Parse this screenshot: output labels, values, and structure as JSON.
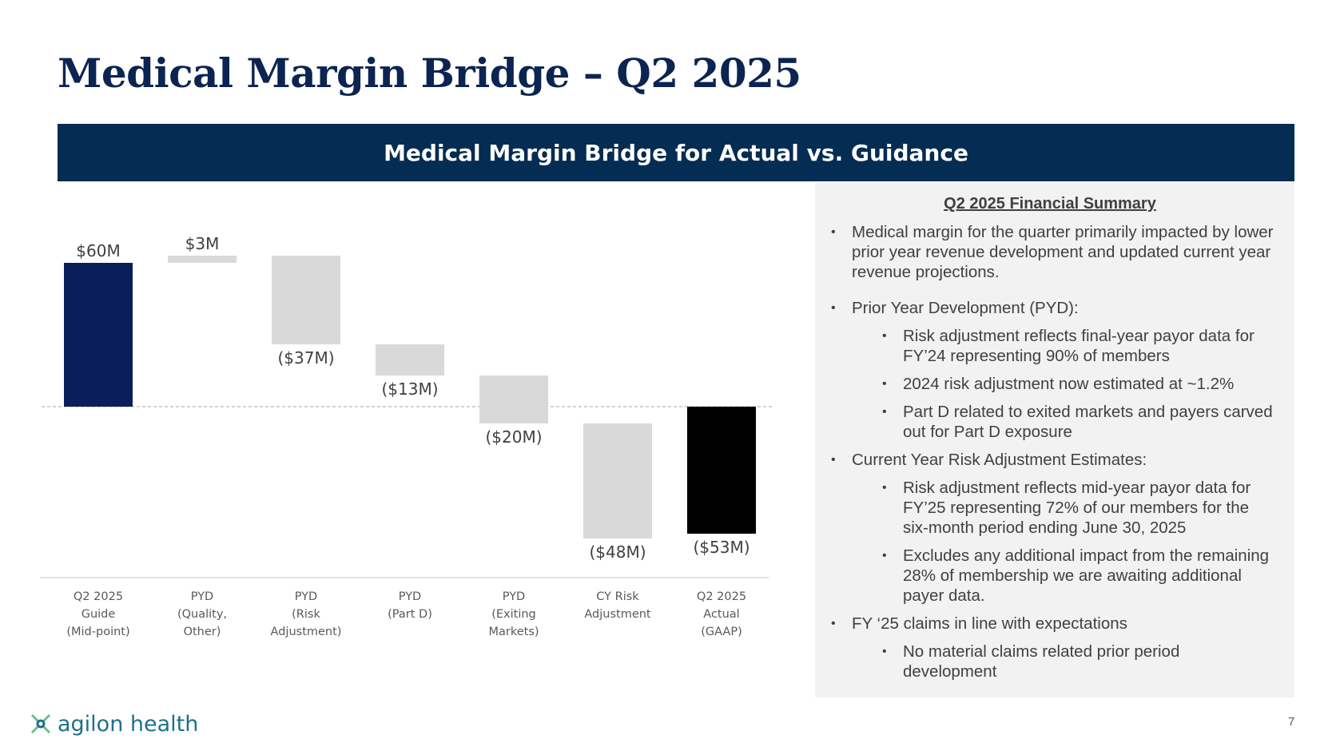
{
  "page": {
    "title": "Medical Margin Bridge – Q2 2025",
    "page_number": "7"
  },
  "banner": {
    "text": "Medical Margin Bridge for Actual vs. Guidance"
  },
  "chart_data": {
    "type": "waterfall",
    "title": "Medical Margin Bridge for Actual vs. Guidance",
    "categories": [
      [
        "Q2 2025",
        "Guide",
        "(Mid-point)"
      ],
      [
        "PYD",
        "(Quality,",
        "Other)"
      ],
      [
        "PYD",
        "(Risk",
        "Adjustment)"
      ],
      [
        "PYD",
        "(Part D)"
      ],
      [
        "PYD",
        "(Exiting",
        "Markets)"
      ],
      [
        "CY Risk",
        "Adjustment"
      ],
      [
        "Q2 2025",
        "Actual",
        "(GAAP)"
      ]
    ],
    "values": [
      60,
      3,
      -37,
      -13,
      -20,
      -48,
      -53
    ],
    "measures": [
      "total",
      "relative",
      "relative",
      "relative",
      "relative",
      "relative",
      "total"
    ],
    "data_labels": [
      "$60M",
      "$3M",
      "($37M)",
      "($13M)",
      "($20M)",
      "($48M)",
      "($53M)"
    ],
    "colors": [
      "#0a1e5c",
      "#d9d9d9",
      "#d9d9d9",
      "#d9d9d9",
      "#d9d9d9",
      "#d9d9d9",
      "#000000"
    ],
    "units": "$M",
    "baseline": 0,
    "ylim": [
      -60,
      66
    ]
  },
  "summary": {
    "heading": "Q2 2025 Financial Summary",
    "items": [
      {
        "level": 1,
        "text": "Medical margin for the quarter primarily impacted by lower prior year revenue development and updated current year revenue projections."
      },
      {
        "level": 1,
        "text": "Prior Year Development (PYD):"
      },
      {
        "level": 2,
        "text": "Risk adjustment reflects final-year payor data for FY’24 representing 90% of members"
      },
      {
        "level": 2,
        "text": "2024 risk adjustment now estimated at ~1.2%"
      },
      {
        "level": 2,
        "text": "Part D related to exited markets and payers carved out for Part D exposure"
      },
      {
        "level": 1,
        "text": "Current Year Risk Adjustment Estimates:"
      },
      {
        "level": 2,
        "text": "Risk adjustment reflects mid-year payor data for FY’25 representing 72% of our members for the six-month period ending June 30, 2025"
      },
      {
        "level": 2,
        "text": "Excludes any additional impact from the remaining 28% of membership we are awaiting additional payer data."
      },
      {
        "level": 1,
        "text": "FY ‘25 claims in line with expectations"
      },
      {
        "level": 2,
        "text": "No material claims related prior period development"
      }
    ]
  },
  "logo": {
    "text": "agilon health",
    "icon": "agilon-logo-icon",
    "color": "#1f6f8b"
  }
}
